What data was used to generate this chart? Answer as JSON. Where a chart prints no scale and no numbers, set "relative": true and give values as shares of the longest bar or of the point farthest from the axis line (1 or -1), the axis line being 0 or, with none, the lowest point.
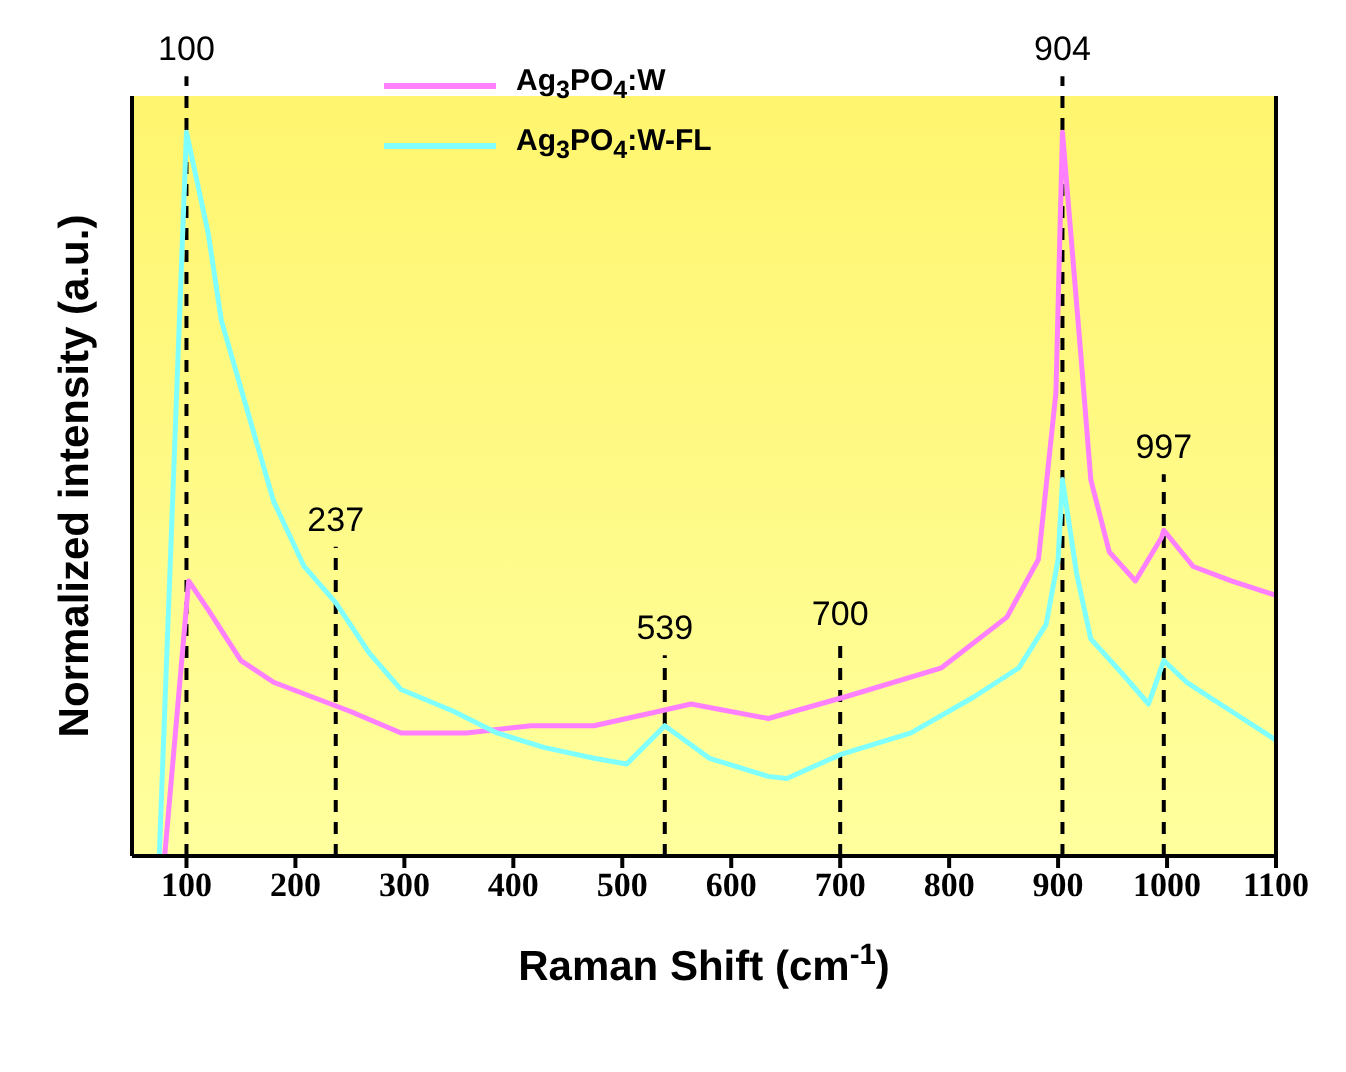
{
  "chart_data": {
    "type": "line",
    "xlabel": "Raman Shift (cm$^{-1}$)",
    "ylabel": "Normalized intensity (a.u.)",
    "relative": true,
    "xlim": [
      50,
      1100
    ],
    "xticks": [
      100,
      200,
      300,
      400,
      500,
      600,
      700,
      800,
      900,
      1000,
      1100
    ],
    "tick_labels": "x",
    "legend": "top",
    "line_style": "solid",
    "marker": "none",
    "series": [
      {
        "name": "Ag$_{3}$PO$_{4}$:W",
        "color": "#ff80ff",
        "x": [
          80,
          102,
          120,
          150,
          180,
          215,
          250,
          297,
          357,
          416,
          474,
          534,
          563,
          634,
          705,
          793,
          853,
          882,
          898,
          904,
          921,
          930,
          947,
          971,
          995,
          997,
          1024,
          1059,
          1100
        ],
        "values": [
          0,
          0.38,
          0.34,
          0.27,
          0.24,
          0.22,
          0.2,
          0.17,
          0.17,
          0.18,
          0.18,
          0.2,
          0.21,
          0.19,
          0.22,
          0.26,
          0.33,
          0.41,
          0.64,
          1,
          0.69,
          0.52,
          0.42,
          0.38,
          0.44,
          0.45,
          0.4,
          0.38,
          0.36
        ]
      },
      {
        "name": "Ag$_{3}$PO$_{4}$:W-FL",
        "color": "#80ffff",
        "x": [
          75,
          100,
          120,
          132,
          155,
          180,
          208,
          237,
          268,
          297,
          345,
          385,
          428,
          474,
          504,
          539,
          580,
          634,
          651,
          700,
          765,
          823,
          864,
          889,
          900,
          904,
          917,
          930,
          960,
          983,
          997,
          1018,
          1059,
          1100
        ],
        "values": [
          0,
          1,
          0.86,
          0.74,
          0.62,
          0.49,
          0.4,
          0.35,
          0.28,
          0.23,
          0.2,
          0.17,
          0.15,
          0.135,
          0.127,
          0.18,
          0.135,
          0.11,
          0.107,
          0.14,
          0.17,
          0.22,
          0.26,
          0.32,
          0.41,
          0.52,
          0.39,
          0.3,
          0.25,
          0.21,
          0.27,
          0.24,
          0.2,
          0.16
        ]
      }
    ],
    "ref_lines": [
      {
        "axis": "x",
        "value": 100,
        "label": "100",
        "line_style": "dashed",
        "color": "#000000"
      },
      {
        "axis": "x",
        "value": 237,
        "label": "237",
        "line_style": "dashed",
        "color": "#000000"
      },
      {
        "axis": "x",
        "value": 539,
        "label": "539",
        "line_style": "dashed",
        "color": "#000000"
      },
      {
        "axis": "x",
        "value": 700,
        "label": "700",
        "line_style": "dashed",
        "color": "#000000"
      },
      {
        "axis": "x",
        "value": 904,
        "label": "904",
        "line_style": "dashed",
        "color": "#000000"
      },
      {
        "axis": "x",
        "value": 997,
        "label": "997",
        "line_style": "dashed",
        "color": "#000000"
      }
    ]
  }
}
